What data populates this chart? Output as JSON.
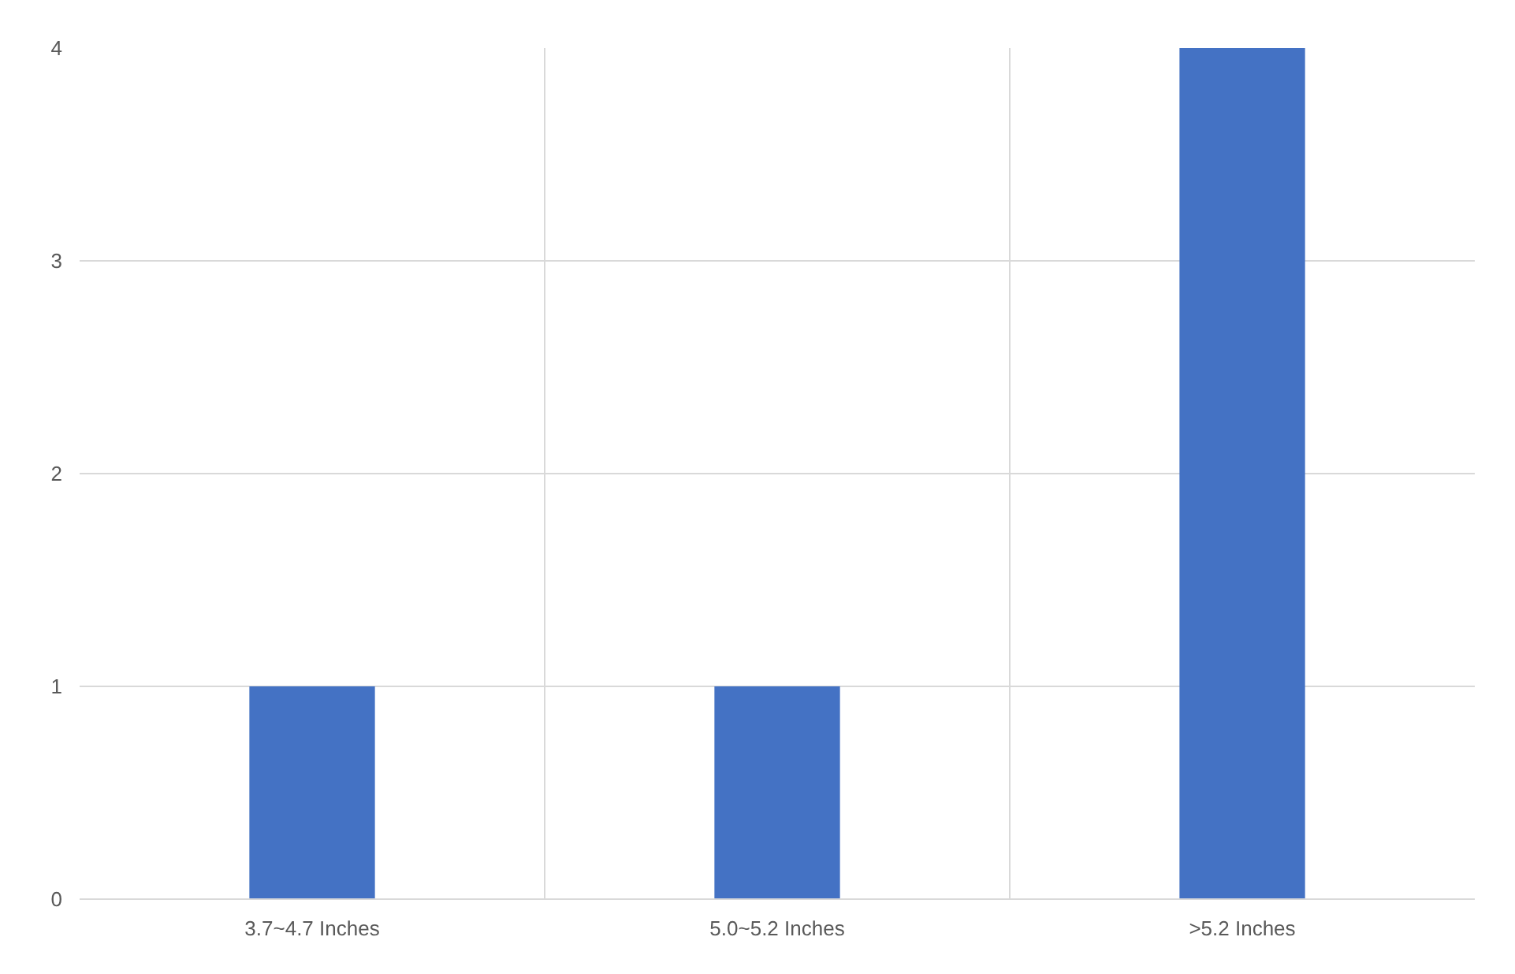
{
  "chart_data": {
    "type": "bar",
    "categories": [
      "3.7~4.7 Inches",
      "5.0~5.2 Inches",
      ">5.2 Inches"
    ],
    "values": [
      1,
      1,
      4
    ],
    "color": "#4472c4",
    "ylim": [
      0,
      4
    ],
    "yticks": [
      0,
      1,
      2,
      3,
      4
    ],
    "grid": true
  }
}
